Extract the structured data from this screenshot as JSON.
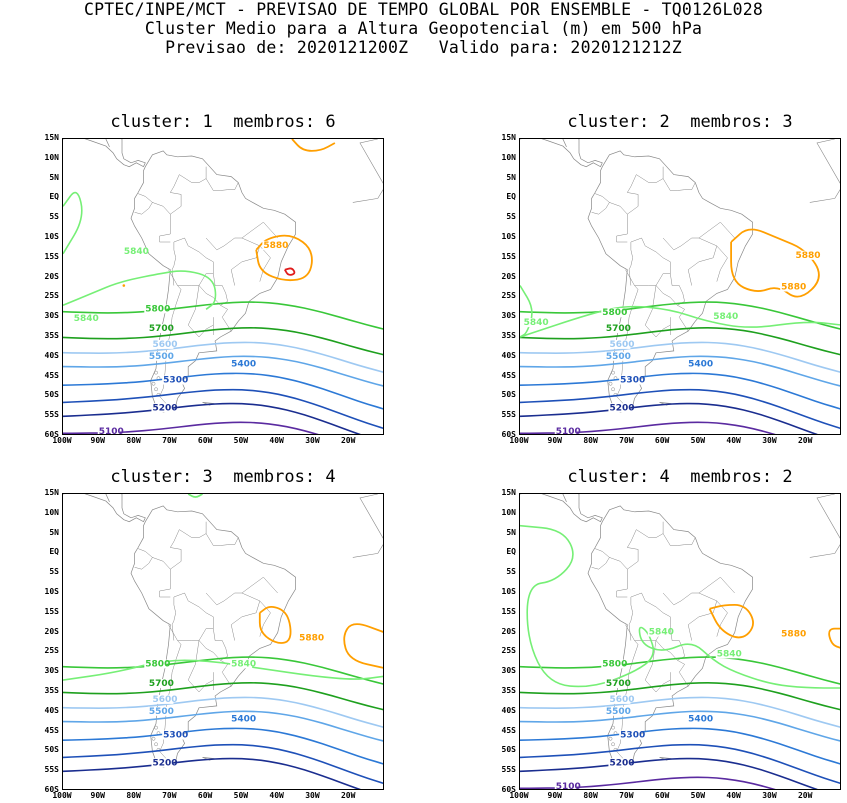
{
  "header": {
    "line1": "CPTEC/INPE/MCT - PREVISAO DE TEMPO GLOBAL POR ENSEMBLE - TQ0126L028",
    "line2": "Cluster Medio para a Altura Geopotencial (m) em 500 hPa",
    "line3": "Previsao de: 2020121200Z   Valido para: 2020121212Z"
  },
  "lat_labels": [
    "15N",
    "10N",
    "5N",
    "EQ",
    "5S",
    "10S",
    "15S",
    "20S",
    "25S",
    "30S",
    "35S",
    "40S",
    "45S",
    "50S",
    "55S",
    "60S"
  ],
  "lon_labels": [
    "100W",
    "90W",
    "80W",
    "70W",
    "60W",
    "50W",
    "40W",
    "30W",
    "20W"
  ],
  "panels": [
    {
      "title": "cluster: 1  membros: 6",
      "cluster": 1,
      "membros": 6,
      "labels": [
        "5880",
        "5840",
        "5840",
        "5800",
        "5700",
        "5600",
        "5500",
        "5400",
        "5300",
        "5200",
        "5100"
      ]
    },
    {
      "title": "cluster: 2  membros: 3",
      "cluster": 2,
      "membros": 3,
      "labels": [
        "5880",
        "5880",
        "5840",
        "5840",
        "5800",
        "5700",
        "5600",
        "5500",
        "5400",
        "5300",
        "5200",
        "5100"
      ]
    },
    {
      "title": "cluster: 3  membros: 4",
      "cluster": 3,
      "membros": 4,
      "labels": [
        "5880",
        "5840",
        "5800",
        "5700",
        "5600",
        "5500",
        "5400",
        "5300",
        "5200"
      ]
    },
    {
      "title": "cluster: 4  membros: 2",
      "cluster": 4,
      "membros": 2,
      "labels": [
        "5880",
        "5840",
        "5840",
        "5800",
        "5700",
        "5600",
        "5500",
        "5400",
        "5300",
        "5200",
        "5100"
      ]
    }
  ],
  "colors": {
    "c5880": "#ff9f00",
    "c5900": "#e01c1c",
    "c5840": "#76ef76",
    "c5800": "#39c739",
    "c5700": "#1ea01e",
    "c5600": "#9ec9f2",
    "c5500": "#5fa6e8",
    "c5400": "#2c79d6",
    "c5300": "#1e50b8",
    "c5200": "#1a2d8f",
    "c5100": "#5a2aa0",
    "land": "#888888"
  }
}
